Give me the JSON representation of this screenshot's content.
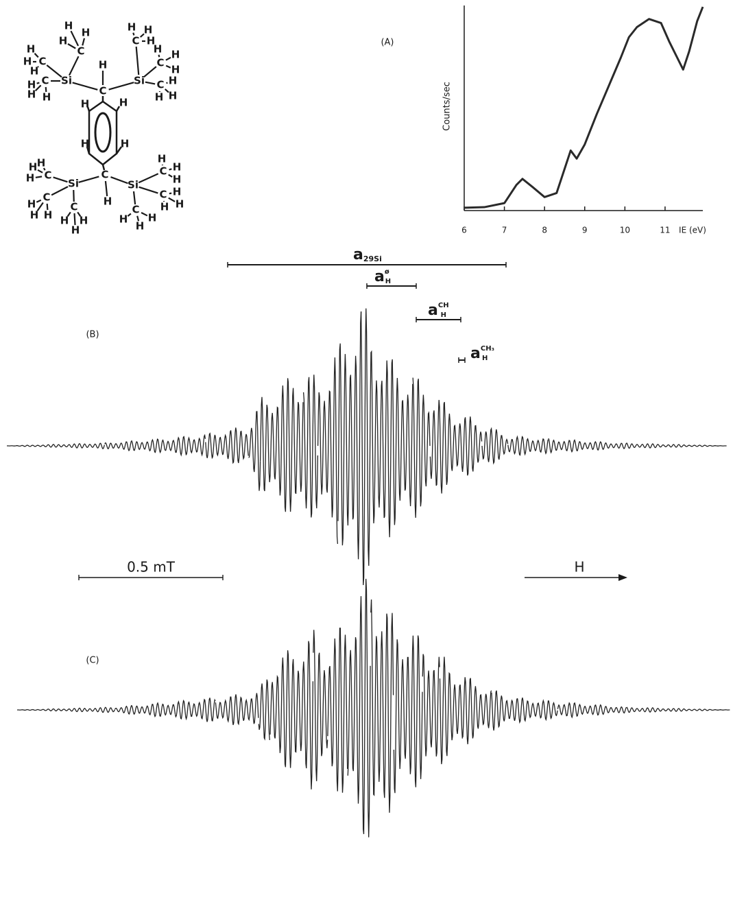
{
  "molecule": {
    "atoms": [
      "Si",
      "C",
      "Si",
      "H",
      "C",
      "H",
      "H",
      "H",
      "C",
      "H",
      "H",
      "H",
      "C",
      "H",
      "H",
      "H",
      "C",
      "H",
      "H",
      "H",
      "C",
      "H",
      "H",
      "H",
      "C",
      "H",
      "H",
      "H",
      "H",
      "H",
      "H",
      "H",
      "C",
      "H",
      "Si",
      "C",
      "H",
      "H",
      "H",
      "C",
      "H",
      "H",
      "H",
      "C",
      "H",
      "H",
      "H",
      "Si",
      "C",
      "H",
      "H",
      "H",
      "C",
      "H",
      "H",
      "H",
      "C",
      "H",
      "H",
      "H"
    ]
  },
  "chart_data": {
    "type": "line",
    "title": "(A)",
    "y_label": "Counts/sec",
    "x_label": "IE (eV)",
    "x": [
      6.0,
      6.5,
      7.0,
      7.3,
      7.45,
      7.7,
      8.0,
      8.3,
      8.5,
      8.65,
      8.8,
      9.0,
      9.3,
      9.6,
      9.9,
      10.1,
      10.3,
      10.6,
      10.9,
      11.1,
      11.3,
      11.45,
      11.6,
      11.8,
      11.94
    ],
    "values": [
      0.7,
      1,
      3,
      12,
      15,
      11,
      6,
      8,
      20,
      29,
      25,
      32,
      47,
      61,
      75,
      85,
      90,
      94,
      92,
      83,
      75,
      69,
      78,
      93,
      100
    ],
    "xlim": [
      6,
      11.94
    ],
    "ylim": [
      0,
      100
    ],
    "xticks": [
      6,
      7,
      8,
      9,
      10,
      11
    ],
    "color": "#2a2a2a"
  },
  "spectra": [
    {
      "label": "(B)",
      "xlim": [
        -1.23,
        1.27
      ],
      "field": [
        -1.23,
        -0.89,
        -0.68,
        -0.54,
        -0.39,
        -0.35,
        -0.2,
        -0.15,
        -0.08,
        0,
        0.08,
        0.18,
        0.24,
        0.32,
        0.42,
        0.51,
        0.65,
        0.89,
        1.27
      ],
      "amplitude": [
        0,
        2,
        5,
        8,
        14,
        32,
        55,
        45,
        68,
        100,
        64,
        50,
        39,
        25,
        16,
        7,
        5,
        2,
        0
      ]
    },
    {
      "label": "(C)",
      "xlim": [
        -1.23,
        1.25
      ],
      "field": [
        -1.23,
        -0.89,
        -0.68,
        -0.54,
        -0.39,
        -0.35,
        -0.2,
        -0.15,
        -0.08,
        0,
        0.08,
        0.18,
        0.24,
        0.32,
        0.42,
        0.51,
        0.65,
        0.89,
        1.25
      ],
      "amplitude": [
        0,
        2,
        6,
        9,
        13,
        33,
        57,
        46,
        70,
        100,
        66,
        52,
        40,
        26,
        15,
        9,
        6,
        2,
        0
      ]
    }
  ],
  "annotations": [
    {
      "base": "a",
      "sub": "29Si"
    },
    {
      "base": "a",
      "sub": "H",
      "sup": "ø"
    },
    {
      "base": "a",
      "sub": "H",
      "sup": "CH"
    },
    {
      "base": "a",
      "sub": "H",
      "sup": "CH₃"
    }
  ],
  "scale_bar": {
    "label": "0.5 mT",
    "value": 0.5
  },
  "field_arrow": {
    "label": "H"
  }
}
